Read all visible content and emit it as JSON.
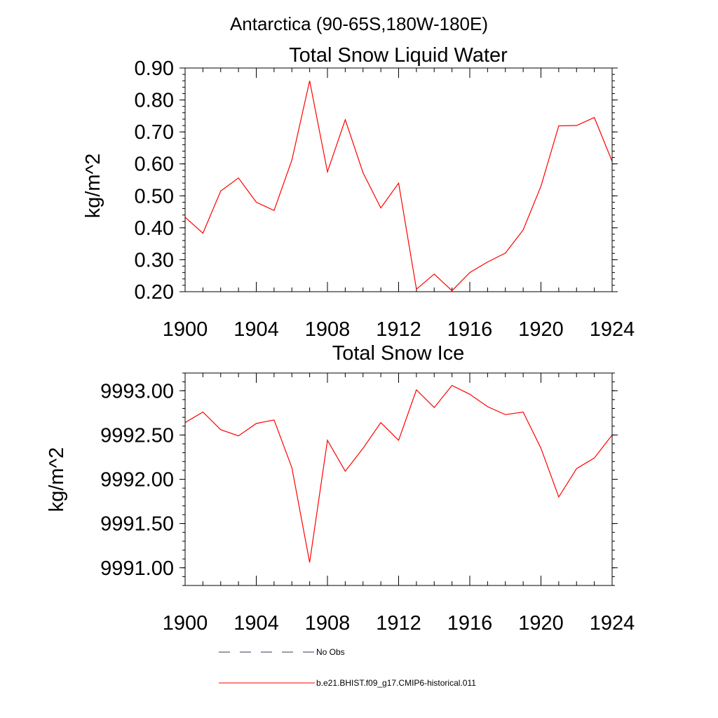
{
  "figure": {
    "suptitle": "Antarctica (90-65S,180W-180E)"
  },
  "chart_data": [
    {
      "type": "line",
      "title": "Total Snow Liquid Water",
      "xlabel": "",
      "ylabel": "kg/m^2",
      "xlim": [
        1900,
        1924
      ],
      "ylim": [
        0.2,
        0.9
      ],
      "x_ticks": [
        "1900",
        "1904",
        "1908",
        "1912",
        "1916",
        "1920",
        "1924"
      ],
      "y_ticks": [
        "0.20",
        "0.30",
        "0.40",
        "0.50",
        "0.60",
        "0.70",
        "0.80",
        "0.90"
      ],
      "grid": false,
      "series": [
        {
          "name": "b.e21.BHIST.f09_g17.CMIP6-historical.011",
          "color": "#ff0000",
          "x": [
            1900,
            1901,
            1902,
            1903,
            1904,
            1905,
            1906,
            1907,
            1908,
            1909,
            1910,
            1911,
            1912,
            1913,
            1914,
            1915,
            1916,
            1917,
            1918,
            1919,
            1920,
            1921,
            1922,
            1923,
            1924
          ],
          "y": [
            0.433,
            0.383,
            0.515,
            0.556,
            0.48,
            0.454,
            0.612,
            0.86,
            0.575,
            0.738,
            0.572,
            0.462,
            0.54,
            0.208,
            0.255,
            0.203,
            0.26,
            0.293,
            0.321,
            0.393,
            0.53,
            0.719,
            0.72,
            0.745,
            0.608
          ]
        }
      ]
    },
    {
      "type": "line",
      "title": "Total Snow Ice",
      "xlabel": "",
      "ylabel": "kg/m^2",
      "xlim": [
        1900,
        1924
      ],
      "ylim": [
        9990.8,
        9993.2
      ],
      "x_ticks": [
        "1900",
        "1904",
        "1908",
        "1912",
        "1916",
        "1920",
        "1924"
      ],
      "y_ticks": [
        "9991.00",
        "9991.50",
        "9992.00",
        "9992.50",
        "9993.00"
      ],
      "grid": false,
      "series": [
        {
          "name": "b.e21.BHIST.f09_g17.CMIP6-historical.011",
          "color": "#ff0000",
          "x": [
            1900,
            1901,
            1902,
            1903,
            1904,
            1905,
            1906,
            1907,
            1908,
            1909,
            1910,
            1911,
            1912,
            1913,
            1914,
            1915,
            1916,
            1917,
            1918,
            1919,
            1920,
            1921,
            1922,
            1923,
            1924
          ],
          "y": [
            9992.64,
            9992.76,
            9992.56,
            9992.49,
            9992.63,
            9992.67,
            9992.13,
            9991.06,
            9992.44,
            9992.09,
            9992.35,
            9992.64,
            9992.44,
            9993.01,
            9992.81,
            9993.06,
            9992.96,
            9992.82,
            9992.73,
            9992.76,
            9992.35,
            9991.8,
            9992.12,
            9992.24,
            9992.5
          ]
        }
      ]
    }
  ],
  "legend": {
    "placement": "bottom-center",
    "items": [
      {
        "label": "No Obs",
        "style": "dashed",
        "color": "#39395a"
      },
      {
        "label": "b.e21.BHIST.f09_g17.CMIP6-historical.011",
        "style": "solid",
        "color": "#ff0000"
      }
    ]
  }
}
